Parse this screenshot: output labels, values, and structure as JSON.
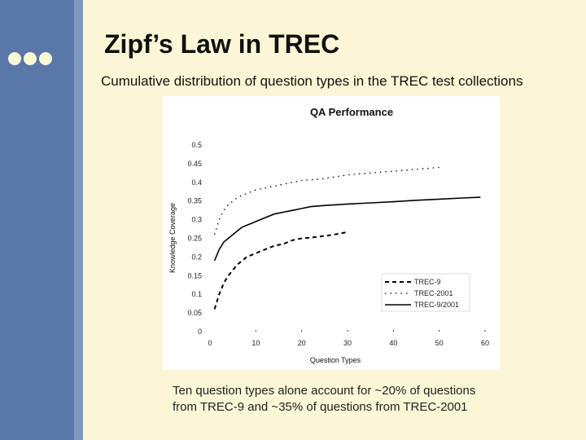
{
  "slide": {
    "title": "Zipf’s Law in TREC",
    "subtitle": "Cumulative distribution of question types in the TREC test collections",
    "caption_lines": [
      "Ten question types alone account for ~20% of questions",
      "from TREC-9 and ~35% of questions from TREC-2001"
    ],
    "colors": {
      "background": "#fbf7d6",
      "sidebar": "#5a77a9",
      "sidebar_edge": "#7f98c2"
    }
  },
  "chart_data": {
    "type": "line",
    "title": "QA Performance",
    "xlabel": "Question Types",
    "ylabel": "Knowledge Coverage",
    "xlim": [
      0,
      60
    ],
    "ylim": [
      0,
      0.5
    ],
    "xticks": [
      0,
      10,
      20,
      30,
      40,
      50,
      60
    ],
    "yticks": [
      0,
      0.05,
      0.1,
      0.15,
      0.2,
      0.25,
      0.3,
      0.35,
      0.4,
      0.45,
      0.5
    ],
    "ytick_labels": [
      "0",
      "0.05",
      "0.1",
      "0.15",
      "0.2",
      "0.25",
      "0.3",
      "0.35",
      "0.4",
      "0.45",
      "0.5"
    ],
    "grid": false,
    "legend_position": "bottom-right",
    "series": [
      {
        "name": "TREC-9",
        "style": "dashed",
        "color": "#000000",
        "x": [
          1,
          2,
          3,
          4,
          5,
          6,
          7,
          8,
          9,
          10,
          12,
          14,
          16,
          18,
          20,
          22,
          24,
          26,
          28,
          30
        ],
        "y": [
          0.06,
          0.1,
          0.13,
          0.15,
          0.165,
          0.18,
          0.19,
          0.2,
          0.205,
          0.21,
          0.22,
          0.23,
          0.235,
          0.245,
          0.25,
          0.252,
          0.255,
          0.258,
          0.262,
          0.267
        ]
      },
      {
        "name": "TREC-2001",
        "style": "dotted",
        "color": "#000000",
        "x": [
          1,
          2,
          3,
          4,
          5,
          6,
          7,
          8,
          9,
          10,
          12,
          14,
          16,
          18,
          20,
          25,
          30,
          35,
          40,
          45,
          50
        ],
        "y": [
          0.26,
          0.3,
          0.325,
          0.34,
          0.35,
          0.36,
          0.365,
          0.37,
          0.375,
          0.38,
          0.385,
          0.39,
          0.395,
          0.4,
          0.405,
          0.41,
          0.42,
          0.425,
          0.43,
          0.435,
          0.44
        ]
      },
      {
        "name": "TREC-9/2001",
        "style": "solid",
        "color": "#000000",
        "x": [
          1,
          2,
          3,
          4,
          5,
          6,
          7,
          8,
          9,
          10,
          12,
          14,
          16,
          18,
          20,
          22,
          25,
          30,
          35,
          40,
          45,
          50,
          55,
          59
        ],
        "y": [
          0.19,
          0.22,
          0.24,
          0.25,
          0.26,
          0.27,
          0.28,
          0.285,
          0.29,
          0.295,
          0.305,
          0.315,
          0.32,
          0.325,
          0.33,
          0.335,
          0.338,
          0.342,
          0.345,
          0.348,
          0.352,
          0.355,
          0.358,
          0.36
        ]
      }
    ]
  }
}
